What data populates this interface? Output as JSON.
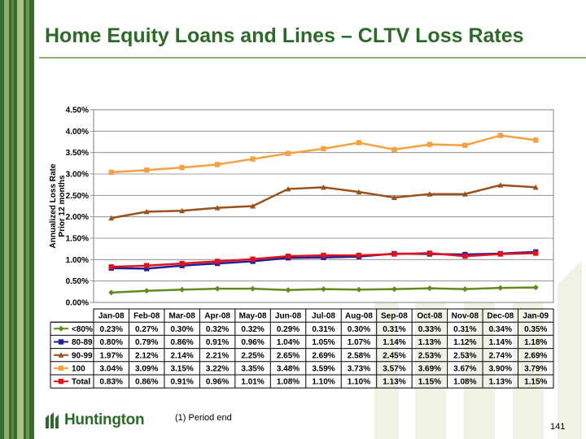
{
  "title": "Home Equity Loans and Lines – CLTV Loss Rates",
  "footnote": "(1)  Period end",
  "page_number": "141",
  "logo_text": "Huntington",
  "colors": {
    "title": "#2d6a2a",
    "stripe_dark": "#3a6a2e",
    "stripe_light": "#8fb06a"
  },
  "chart_data": {
    "type": "line",
    "ylabel": "Annualized Loss Rate\nPrior 12 months",
    "xlabel": "",
    "ylim": [
      0,
      4.5
    ],
    "yticks": [
      "0.00%",
      "0.50%",
      "1.00%",
      "1.50%",
      "2.00%",
      "2.50%",
      "3.00%",
      "3.50%",
      "4.00%",
      "4.50%"
    ],
    "grid": true,
    "categories": [
      "Jan-08",
      "Feb-08",
      "Mar-08",
      "Apr-08",
      "May-08",
      "Jun-08",
      "Jul-08",
      "Aug-08",
      "Sep-08",
      "Oct-08",
      "Nov-08",
      "Dec-08",
      "Jan-09"
    ],
    "series": [
      {
        "name": "<80%",
        "color": "#5f8a1e",
        "marker": "diamond",
        "values": [
          0.23,
          0.27,
          0.3,
          0.32,
          0.32,
          0.29,
          0.31,
          0.3,
          0.31,
          0.33,
          0.31,
          0.34,
          0.35
        ],
        "labels": [
          "0.23%",
          "0.27%",
          "0.30%",
          "0.32%",
          "0.32%",
          "0.29%",
          "0.31%",
          "0.30%",
          "0.31%",
          "0.33%",
          "0.31%",
          "0.34%",
          "0.35%"
        ]
      },
      {
        "name": "80-89",
        "color": "#1f1f9a",
        "marker": "square",
        "values": [
          0.8,
          0.79,
          0.86,
          0.91,
          0.96,
          1.04,
          1.05,
          1.07,
          1.14,
          1.13,
          1.12,
          1.14,
          1.18
        ],
        "labels": [
          "0.80%",
          "0.79%",
          "0.86%",
          "0.91%",
          "0.96%",
          "1.04%",
          "1.05%",
          "1.07%",
          "1.14%",
          "1.13%",
          "1.12%",
          "1.14%",
          "1.18%"
        ]
      },
      {
        "name": "90-99",
        "color": "#99521c",
        "marker": "triangle",
        "values": [
          1.97,
          2.12,
          2.14,
          2.21,
          2.25,
          2.65,
          2.69,
          2.58,
          2.45,
          2.53,
          2.53,
          2.74,
          2.69
        ],
        "labels": [
          "1.97%",
          "2.12%",
          "2.14%",
          "2.21%",
          "2.25%",
          "2.65%",
          "2.69%",
          "2.58%",
          "2.45%",
          "2.53%",
          "2.53%",
          "2.74%",
          "2.69%"
        ]
      },
      {
        "name": "100",
        "color": "#f5a142",
        "marker": "square",
        "values": [
          3.04,
          3.09,
          3.15,
          3.22,
          3.35,
          3.48,
          3.59,
          3.73,
          3.57,
          3.69,
          3.67,
          3.9,
          3.79
        ],
        "labels": [
          "3.04%",
          "3.09%",
          "3.15%",
          "3.22%",
          "3.35%",
          "3.48%",
          "3.59%",
          "3.73%",
          "3.57%",
          "3.69%",
          "3.67%",
          "3.90%",
          "3.79%"
        ]
      },
      {
        "name": "Total",
        "color": "#e0131c",
        "marker": "square",
        "values": [
          0.83,
          0.86,
          0.91,
          0.96,
          1.01,
          1.08,
          1.1,
          1.1,
          1.13,
          1.15,
          1.08,
          1.13,
          1.15
        ],
        "labels": [
          "0.83%",
          "0.86%",
          "0.91%",
          "0.96%",
          "1.01%",
          "1.08%",
          "1.10%",
          "1.10%",
          "1.13%",
          "1.15%",
          "1.08%",
          "1.13%",
          "1.15%"
        ]
      }
    ]
  }
}
